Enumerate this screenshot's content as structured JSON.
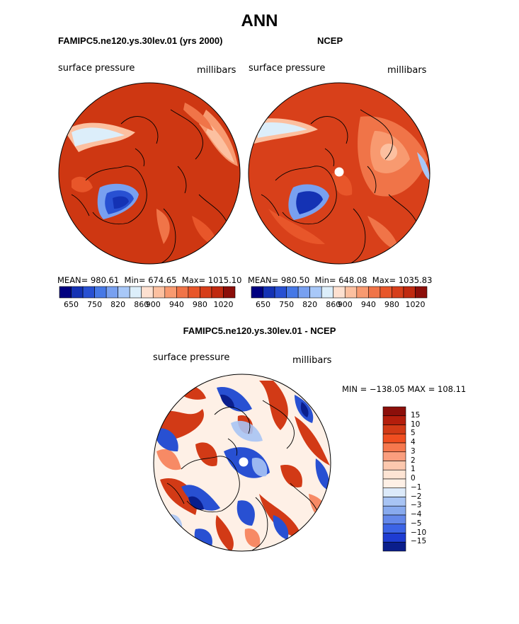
{
  "figure": {
    "title": "ANN"
  },
  "panels": [
    {
      "title": "FAMIPC5.ne120.ys.30lev.01 (yrs 2000)",
      "variable": "surface pressure",
      "units": "millibars",
      "stats": {
        "mean_label": "MEAN=",
        "mean": "980.61",
        "min_label": "Min=",
        "min": "674.65",
        "max_label": "Max=",
        "max": "1015.10"
      },
      "colorbar_ticks": [
        "650",
        "750",
        "820",
        "860",
        "900",
        "940",
        "980",
        "1020"
      ]
    },
    {
      "title": "NCEP",
      "variable": "surface pressure",
      "units": "millibars",
      "stats": {
        "mean_label": "MEAN=",
        "mean": "980.50",
        "min_label": "Min=",
        "min": "648.08",
        "max_label": "Max=",
        "max": "1035.83"
      },
      "colorbar_ticks": [
        "650",
        "750",
        "820",
        "860",
        "900",
        "940",
        "980",
        "1020"
      ]
    }
  ],
  "difference": {
    "title": "FAMIPC5.ne120.ys.30lev.01 - NCEP",
    "variable": "surface pressure",
    "units": "millibars",
    "stats_text": "MIN = −138.05 MAX = 108.11",
    "colorbar_ticks": [
      "15",
      "10",
      "5",
      "4",
      "3",
      "2",
      "1",
      "0",
      "−1",
      "−2",
      "−3",
      "−4",
      "−5",
      "−10",
      "−15"
    ]
  },
  "colors": {
    "sequential": [
      "#000080",
      "#1432b4",
      "#2850d2",
      "#4678e6",
      "#78a0f0",
      "#a8c8f8",
      "#dceefa",
      "#fde0d0",
      "#fcc0a0",
      "#f89a70",
      "#f07448",
      "#e8562a",
      "#d63e1a",
      "#c02a10",
      "#8c0f0a"
    ],
    "diverging": [
      "#8c0f0a",
      "#b41e0c",
      "#d23a16",
      "#f04e20",
      "#f6784e",
      "#fa9e7e",
      "#fcc8ae",
      "#fef0e6",
      "#dceafa",
      "#a8c4f4",
      "#88aaee",
      "#6488ea",
      "#3c64e6",
      "#1e3cd2",
      "#0a1e8c"
    ],
    "map_red": "#d23a16",
    "map_dark_red": "#b42a10",
    "map_blue": "#2850d2"
  }
}
